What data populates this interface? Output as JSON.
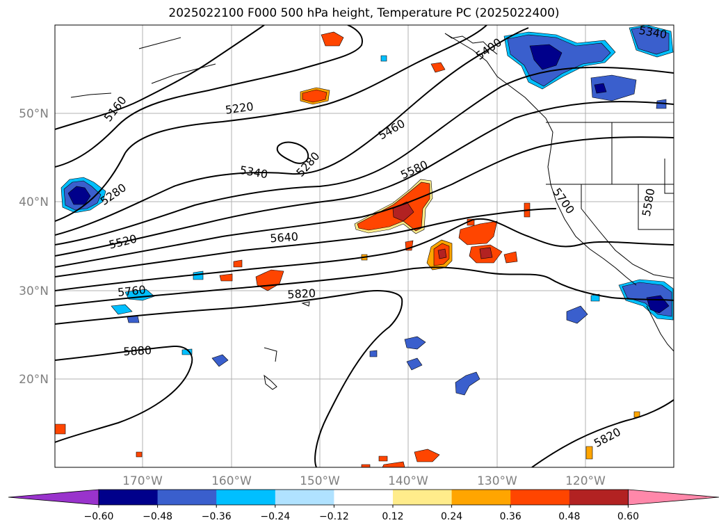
{
  "title": "2025022100 F000 500 hPa height, Temperature PC (2025022400)",
  "lat_ticks": [
    "50°N",
    "40°N",
    "30°N",
    "20°N"
  ],
  "lon_ticks": [
    "170°W",
    "160°W",
    "150°W",
    "140°W",
    "130°W",
    "120°W"
  ],
  "contour_labels": [
    "5160",
    "5220",
    "5460",
    "5400",
    "5340",
    "5280",
    "5280",
    "5580",
    "5340",
    "5520",
    "5640",
    "5700",
    "5580",
    "5760",
    "5820",
    "5880",
    "5820"
  ],
  "colorbar": {
    "ticks": [
      "−0.60",
      "−0.48",
      "−0.36",
      "−0.24",
      "−0.12",
      "0.12",
      "0.24",
      "0.36",
      "0.48",
      "0.60"
    ],
    "colors": [
      "#9933cc",
      "#00008b",
      "#3a5fcd",
      "#00bfff",
      "#b0e2ff",
      "#ffffff",
      "#ffec8b",
      "#ffa500",
      "#ff4500",
      "#b22222",
      "#ff88aa"
    ]
  }
}
